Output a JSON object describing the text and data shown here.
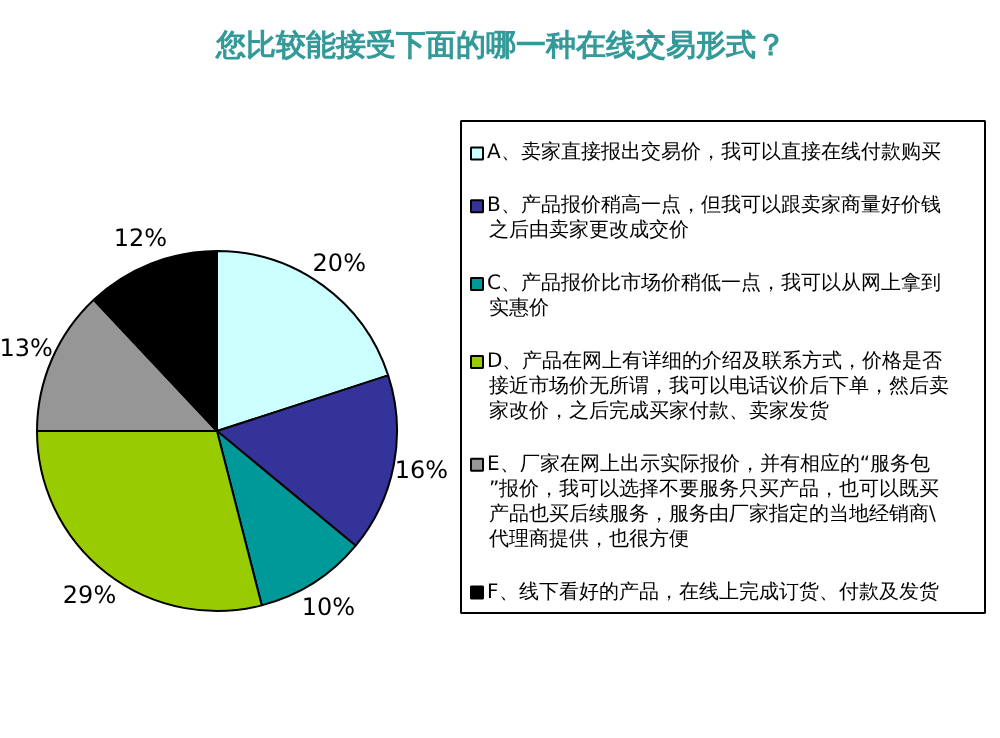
{
  "chart_data": {
    "type": "pie",
    "title": "您比较能接受下面的哪一种在线交易形式？",
    "categories": [
      "A、卖家直接报出交易价，我可以直接在线付款购买",
      "B、产品报价稍高一点，但我可以跟卖家商量好价钱之后由卖家更改成交价",
      "C、产品报价比市场价稍低一点，我可以从网上拿到实惠价",
      "D、产品在网上有详细的介绍及联系方式，价格是否接近市场价无所谓，我可以电话议价后下单，然后卖家改价，之后完成买家付款、卖家发货",
      "E、厂家在网上出示实际报价，并有相应的“服务包”报价，我可以选择不要服务只买产品，也可以既买产品也买后续服务，服务由厂家指定的当地经销商\\代理商提供，也很方便",
      "F、线下看好的产品，在线上完成订货、付款及发货"
    ],
    "values": [
      20,
      16,
      10,
      29,
      13,
      12
    ],
    "value_labels": [
      "20%",
      "16%",
      "10%",
      "29%",
      "13%",
      "12%"
    ],
    "colors": [
      "#ccffff",
      "#333399",
      "#009999",
      "#99cc00",
      "#969696",
      "#000000"
    ],
    "legend": "right"
  }
}
